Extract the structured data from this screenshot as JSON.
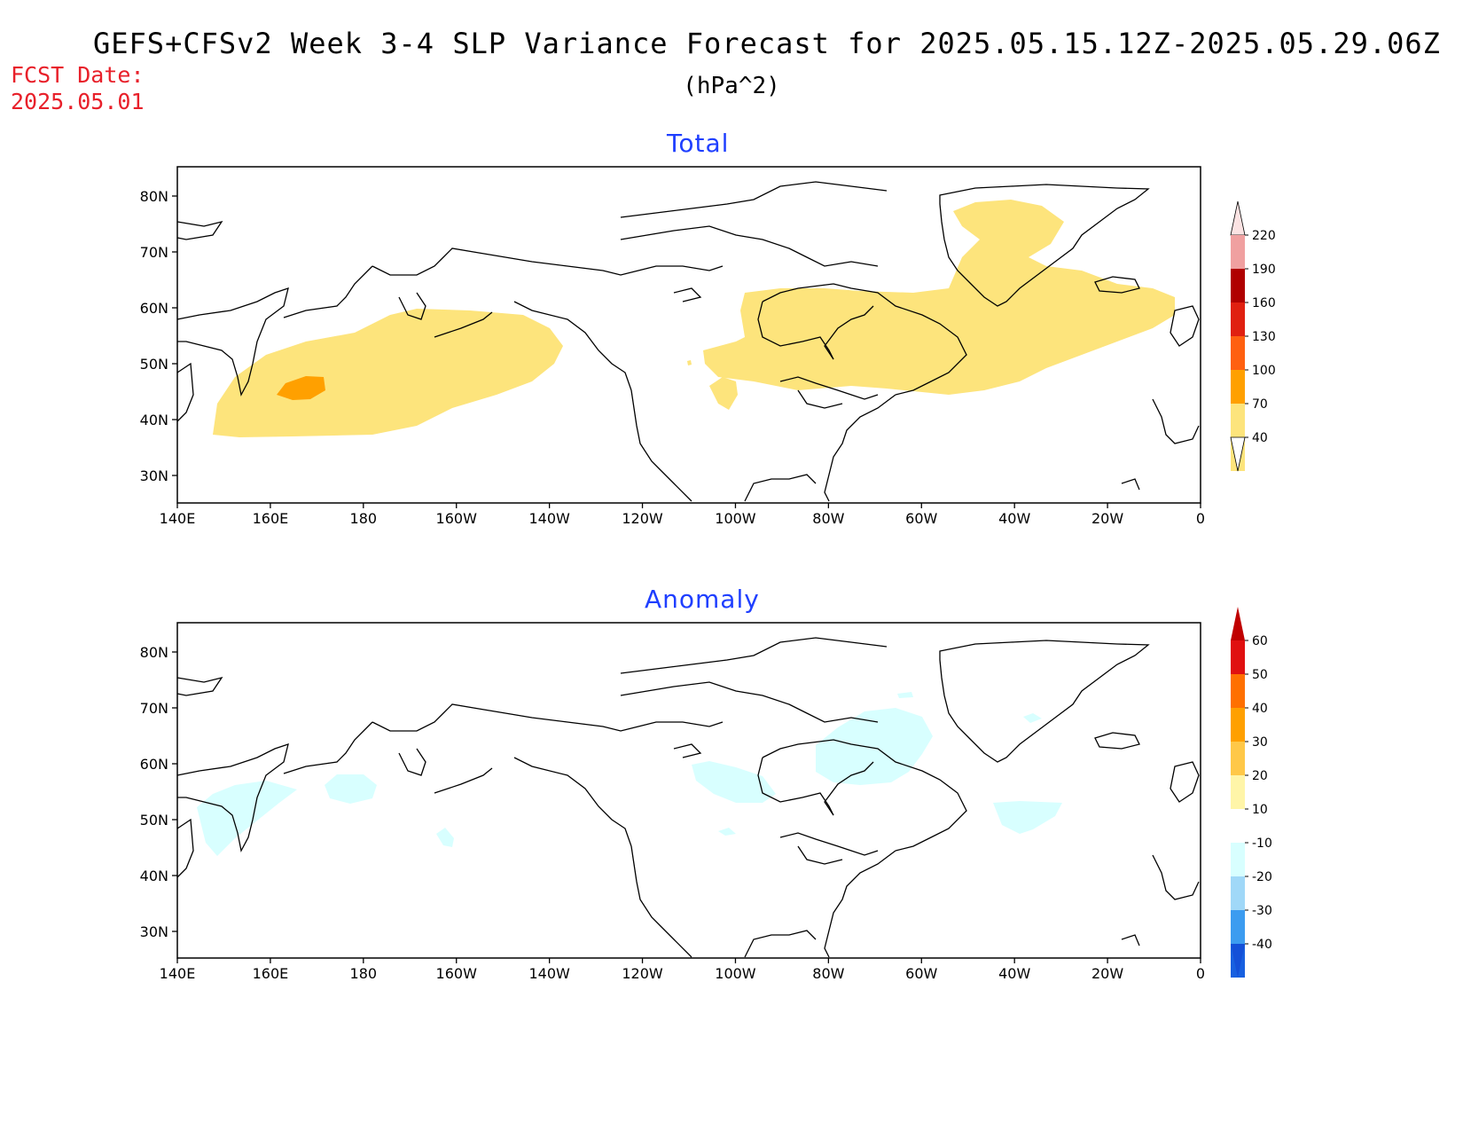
{
  "header": {
    "title": "GEFS+CFSv2 Week 3-4 SLP Variance Forecast for 2025.05.15.12Z-2025.05.29.06Z",
    "units": "(hPa^2)",
    "fcst_label": "FCST Date:",
    "fcst_date": "2025.05.01"
  },
  "panels": [
    {
      "title": "Total"
    },
    {
      "title": "Anomaly"
    }
  ],
  "axes": {
    "lat_ticks": [
      "80N",
      "70N",
      "60N",
      "50N",
      "40N",
      "30N"
    ],
    "lon_ticks": [
      "140E",
      "160E",
      "180",
      "160W",
      "140W",
      "120W",
      "100W",
      "80W",
      "60W",
      "40W",
      "20W",
      "0"
    ]
  },
  "colorbars": {
    "total": {
      "labels": [
        "220",
        "190",
        "160",
        "130",
        "100",
        "70",
        "40"
      ],
      "colors": [
        "#f0a0a0",
        "#b00000",
        "#e02010",
        "#ff6010",
        "#ffa000",
        "#fde47c",
        "#fde47c"
      ]
    },
    "anomaly": {
      "labels": [
        "60",
        "50",
        "40",
        "30",
        "20",
        "10",
        "-10",
        "-20",
        "-30",
        "-40"
      ],
      "colors": {
        "top_arrow": "#c00000",
        "bands": [
          "#e01010",
          "#ff7000",
          "#ffa000",
          "#ffc848",
          "#fff5a8",
          "#ffffff",
          "#d8ffff",
          "#a0d8f8",
          "#3c9cf0",
          "#1860e0"
        ],
        "bottom_arrow": "#1450d8"
      }
    }
  },
  "colors": {
    "total_variance": "#fde47c",
    "total_high": "#ffa000",
    "anomaly_negative": "#d8ffff",
    "title_color": "#000000",
    "fcst_color": "#e8202a",
    "panel_title_color": "#1f3fff"
  }
}
